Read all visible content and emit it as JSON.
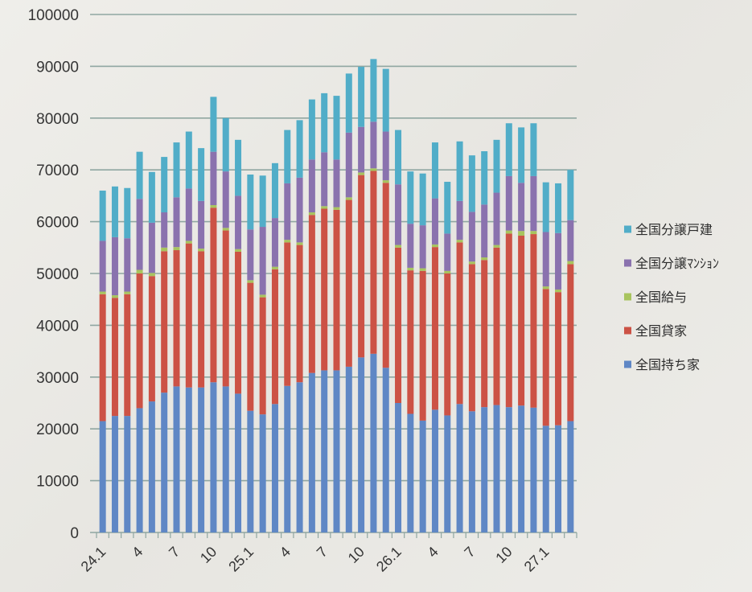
{
  "chart_data": {
    "type": "bar",
    "stacked": true,
    "ylim": [
      0,
      100000
    ],
    "y_ticks": [
      0,
      10000,
      20000,
      30000,
      40000,
      50000,
      60000,
      70000,
      80000,
      90000,
      100000
    ],
    "grid": true,
    "legend_position": "right",
    "categories": [
      "24.1",
      "",
      "",
      "4",
      "",
      "",
      "7",
      "",
      "",
      "10",
      "",
      "",
      "25.1",
      "",
      "",
      "4",
      "",
      "",
      "7",
      "",
      "",
      "10",
      "",
      "",
      "26.1",
      "",
      "",
      "4",
      "",
      "",
      "7",
      "",
      "",
      "10",
      "",
      "",
      "27.1",
      "",
      ""
    ],
    "series": [
      {
        "name": "全国持ち家",
        "color": "#5f87c5",
        "values": [
          21500,
          22500,
          22500,
          24000,
          25300,
          27000,
          28200,
          28000,
          28000,
          29000,
          28200,
          26800,
          23500,
          22800,
          24800,
          28300,
          29000,
          30800,
          31300,
          31300,
          32000,
          33800,
          34500,
          31800,
          25000,
          22900,
          21600,
          23700,
          22600,
          24800,
          23400,
          24200,
          24600,
          24200,
          24500,
          24100,
          20600,
          20700,
          21500
        ]
      },
      {
        "name": "全国貸家",
        "color": "#cc5245",
        "values": [
          24500,
          22800,
          23500,
          26000,
          24200,
          27300,
          26300,
          27800,
          26300,
          33700,
          30100,
          27400,
          24700,
          22600,
          26000,
          27700,
          26500,
          30500,
          31200,
          31000,
          32200,
          35200,
          35300,
          35700,
          30000,
          27700,
          28900,
          31400,
          27400,
          31200,
          28400,
          28400,
          30400,
          33500,
          32800,
          33500,
          26400,
          25700,
          30300
        ]
      },
      {
        "name": "全国給与",
        "color": "#a8c45e",
        "values": [
          500,
          500,
          500,
          700,
          600,
          700,
          600,
          500,
          500,
          500,
          500,
          500,
          500,
          500,
          500,
          500,
          500,
          500,
          500,
          500,
          500,
          500,
          500,
          500,
          500,
          500,
          500,
          500,
          500,
          500,
          500,
          500,
          500,
          600,
          900,
          600,
          500,
          500,
          600
        ]
      },
      {
        "name": "全国分譲ﾏﾝｼｮﾝ",
        "color": "#8a72ae",
        "values": [
          9800,
          11200,
          10300,
          13700,
          9700,
          6800,
          9600,
          10100,
          9200,
          10300,
          10900,
          10300,
          9800,
          13100,
          9400,
          10900,
          12500,
          10200,
          10400,
          9200,
          12500,
          8800,
          9000,
          9400,
          11700,
          8500,
          8300,
          8900,
          7200,
          7500,
          9600,
          10200,
          10100,
          10500,
          9300,
          10600,
          10500,
          10900,
          7900
        ]
      },
      {
        "name": "全国分譲戸建",
        "color": "#51adc8",
        "values": [
          9700,
          9800,
          9700,
          9100,
          9800,
          10700,
          10600,
          11000,
          10200,
          10600,
          10300,
          10800,
          10600,
          9900,
          10600,
          10300,
          11100,
          11600,
          11400,
          12300,
          11400,
          11600,
          12100,
          12100,
          10500,
          10100,
          10000,
          10800,
          10000,
          11500,
          10900,
          10300,
          10200,
          10200,
          10700,
          10200,
          9600,
          9600,
          9700
        ]
      }
    ]
  },
  "colors": {
    "background": "#ebeae6",
    "grid": "#8fa6a1",
    "text": "#353535"
  }
}
